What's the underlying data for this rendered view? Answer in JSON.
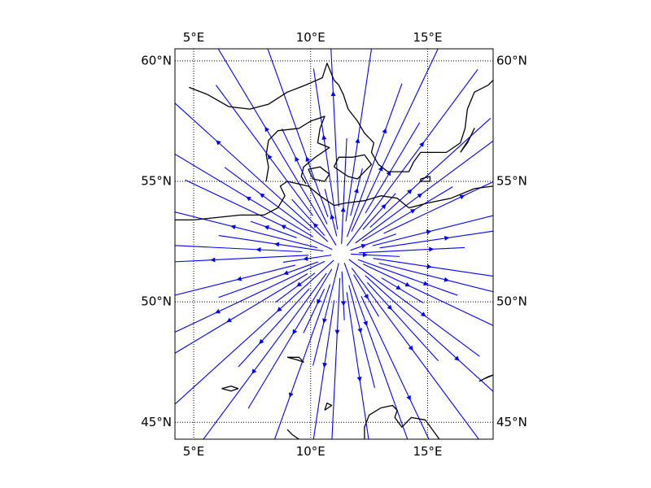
{
  "map": {
    "projection": "cylindrical",
    "lon_range": [
      4.2,
      17.8
    ],
    "lat_range": [
      44.3,
      60.5
    ],
    "meridians": [
      5,
      10,
      15
    ],
    "parallels": [
      45,
      50,
      55,
      60
    ],
    "top_lon_labels": [
      "5°E",
      "10°E",
      "15°E"
    ],
    "bottom_lon_labels": [
      "5°E",
      "10°E",
      "15°E"
    ],
    "left_lat_labels": [
      "45°N",
      "50°N",
      "55°N",
      "60°N"
    ],
    "right_lat_labels": [
      "45°N",
      "50°N",
      "55°N",
      "60°N"
    ],
    "gridlines": "dotted",
    "coastlines": true,
    "streamline_color": "#0000ff",
    "line_color": "#000000",
    "flow_center": {
      "lon": 11.3,
      "lat": 52.0
    },
    "flow_direction": "outward from center"
  },
  "chart_data": {
    "type": "streamplot",
    "title": "",
    "xlabel": "",
    "ylabel": "",
    "xlim": [
      4.2,
      17.8
    ],
    "ylim": [
      44.3,
      60.5
    ],
    "grid": true,
    "source": {
      "lon": 11.3,
      "lat": 52.0
    }
  }
}
